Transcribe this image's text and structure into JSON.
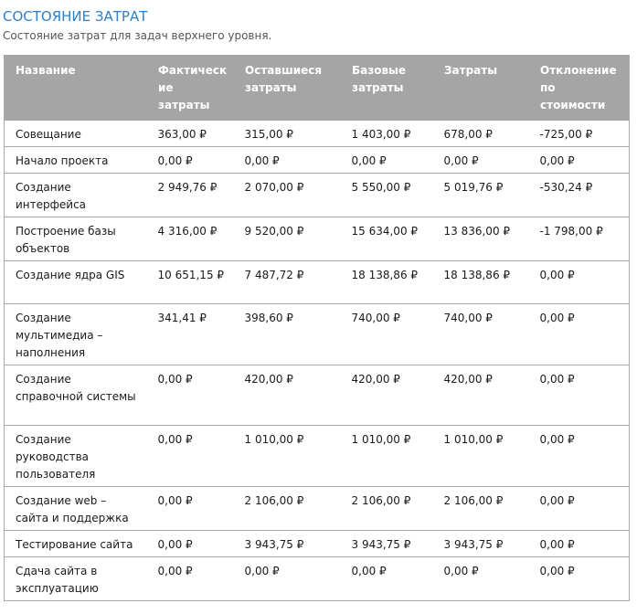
{
  "report": {
    "title": "СОСТОЯНИЕ ЗАТРАТ",
    "subtitle": "Состояние затрат для задач верхнего уровня."
  },
  "table": {
    "headers": [
      "Название",
      "Фактическ ие затраты",
      "Оставшиеся затраты",
      "Базовые затраты",
      "Затраты",
      "Отклонение по стоимости"
    ],
    "rows": [
      [
        "Совещание",
        "363,00 ₽",
        "315,00 ₽",
        "1 403,00 ₽",
        "678,00 ₽",
        "-725,00 ₽"
      ],
      [
        "Начало проекта",
        "0,00 ₽",
        "0,00 ₽",
        "0,00 ₽",
        "0,00 ₽",
        "0,00 ₽"
      ],
      [
        "Создание интерфейса",
        "2 949,76 ₽",
        "2 070,00 ₽",
        "5 550,00 ₽",
        "5 019,76 ₽",
        "-530,24 ₽"
      ],
      [
        "Построение базы объектов",
        "4 316,00 ₽",
        "9 520,00 ₽",
        "15 634,00 ₽",
        "13 836,00 ₽",
        "-1 798,00 ₽"
      ],
      [
        "Создание ядра GIS",
        "10 651,15 ₽",
        "7 487,72 ₽",
        "18 138,86 ₽",
        "18 138,86 ₽",
        "0,00 ₽"
      ],
      [
        "Создание мультимедиа – наполнения",
        "341,41 ₽",
        "398,60 ₽",
        "740,00 ₽",
        "740,00 ₽",
        "0,00 ₽"
      ],
      [
        "Создание справочной системы",
        "0,00 ₽",
        "420,00 ₽",
        "420,00 ₽",
        "420,00 ₽",
        "0,00 ₽"
      ],
      [
        "Создание руководства пользователя",
        "0,00 ₽",
        "1 010,00 ₽",
        "1 010,00 ₽",
        "1 010,00 ₽",
        "0,00 ₽"
      ],
      [
        "Создание web – сайта и поддержка",
        "0,00 ₽",
        "2 106,00 ₽",
        "2 106,00 ₽",
        "2 106,00 ₽",
        "0,00 ₽"
      ],
      [
        "Тестирование сайта",
        "0,00 ₽",
        "3 943,75 ₽",
        "3 943,75 ₽",
        "3 943,75 ₽",
        "0,00 ₽"
      ],
      [
        "Сдача сайта в эксплуатацию",
        "0,00 ₽",
        "0,00 ₽",
        "0,00 ₽",
        "0,00 ₽",
        "0,00 ₽"
      ]
    ]
  }
}
